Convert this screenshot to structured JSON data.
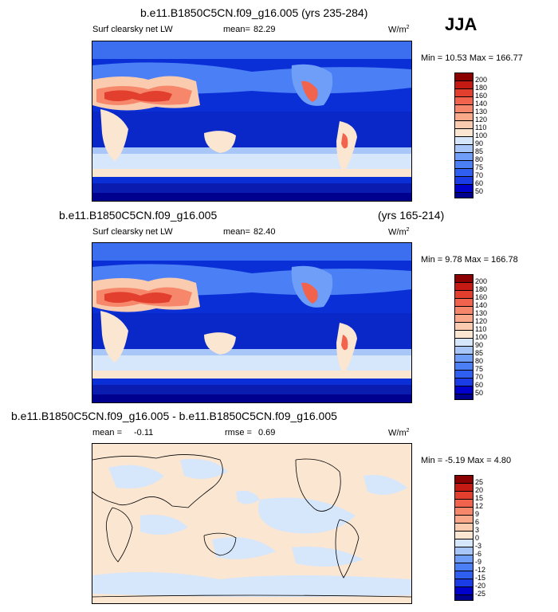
{
  "season": "JJA",
  "colors": {
    "abs_scale": [
      "#00008f",
      "#0000cc",
      "#1a3ce6",
      "#2e5ff0",
      "#4a7ff5",
      "#6f9ef8",
      "#a8c6f8",
      "#d6e6fb",
      "#fbe6d2",
      "#fbcbb0",
      "#f9a98a",
      "#f6876a",
      "#f1634c",
      "#e23f2e",
      "#c41a13",
      "#8b0000"
    ],
    "diff_scale": [
      "#00008f",
      "#0000cc",
      "#1a3ce6",
      "#2e5ff0",
      "#4a7ff5",
      "#6f9ef8",
      "#a8c6f8",
      "#d6e6fb",
      "#fbe6d2",
      "#fbcbb0",
      "#f9a98a",
      "#f6876a",
      "#f1634c",
      "#e23f2e",
      "#c41a13",
      "#8b0000"
    ]
  },
  "panels": [
    {
      "title": "b.e11.B1850C5CN.f09_g16.005 (yrs 235-284)",
      "subtitle_left": "",
      "subtitle_right": "",
      "variable": "Surf clearsky net LW",
      "mean_label": "mean=",
      "mean_value": "82.29",
      "units": "W/m",
      "units_sup": "2",
      "minmax": "Min = 10.53 Max = 166.77",
      "levels": [
        "200",
        "180",
        "160",
        "140",
        "130",
        "120",
        "110",
        "100",
        "90",
        "85",
        "80",
        "75",
        "70",
        "60",
        "50"
      ]
    },
    {
      "title": "",
      "subtitle_left": "b.e11.B1850C5CN.f09_g16.005",
      "subtitle_right": "(yrs 165-214)",
      "variable": "Surf clearsky net LW",
      "mean_label": "mean=",
      "mean_value": "82.40",
      "units": "W/m",
      "units_sup": "2",
      "minmax": "Min = 9.78 Max = 166.78",
      "levels": [
        "200",
        "180",
        "160",
        "140",
        "130",
        "120",
        "110",
        "100",
        "90",
        "85",
        "80",
        "75",
        "70",
        "60",
        "50"
      ]
    },
    {
      "title": "b.e11.B1850C5CN.f09_g16.005 - b.e11.B1850C5CN.f09_g16.005",
      "variable": "mean =",
      "mean_value": "-0.11",
      "rmse_label": "rmse =",
      "rmse_value": "0.69",
      "units": "W/m",
      "units_sup": "2",
      "minmax": "Min = -5.19 Max = 4.80",
      "levels": [
        "25",
        "20",
        "15",
        "12",
        "9",
        "6",
        "3",
        "0",
        "-3",
        "-6",
        "-9",
        "-12",
        "-15",
        "-20",
        "-25"
      ]
    }
  ]
}
